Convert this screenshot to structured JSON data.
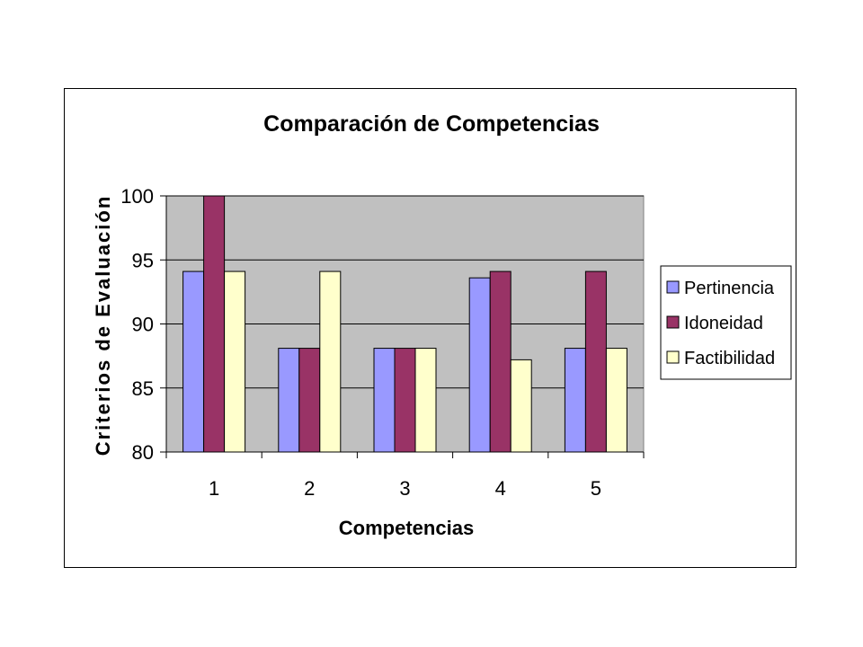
{
  "chart_data": {
    "type": "bar",
    "title": "Comparación de Competencias",
    "xlabel": "Competencias",
    "ylabel": "Criterios de Evaluación",
    "categories": [
      "1",
      "2",
      "3",
      "4",
      "5"
    ],
    "ylim": [
      80,
      100
    ],
    "yticks": [
      "80",
      "85",
      "90",
      "95",
      "100"
    ],
    "series": [
      {
        "name": "Pertinencia",
        "color": "#9999ff",
        "values": [
          94.1,
          88.1,
          88.1,
          93.6,
          88.1
        ]
      },
      {
        "name": "Idoneidad",
        "color": "#993366",
        "values": [
          100,
          88.1,
          88.1,
          94.1,
          94.1
        ]
      },
      {
        "name": "Factibilidad",
        "color": "#ffffcc",
        "values": [
          94.1,
          94.1,
          88.1,
          87.2,
          88.1
        ]
      }
    ],
    "grid": true,
    "plot_background": "#c0c0c0",
    "legend_position": "right"
  }
}
